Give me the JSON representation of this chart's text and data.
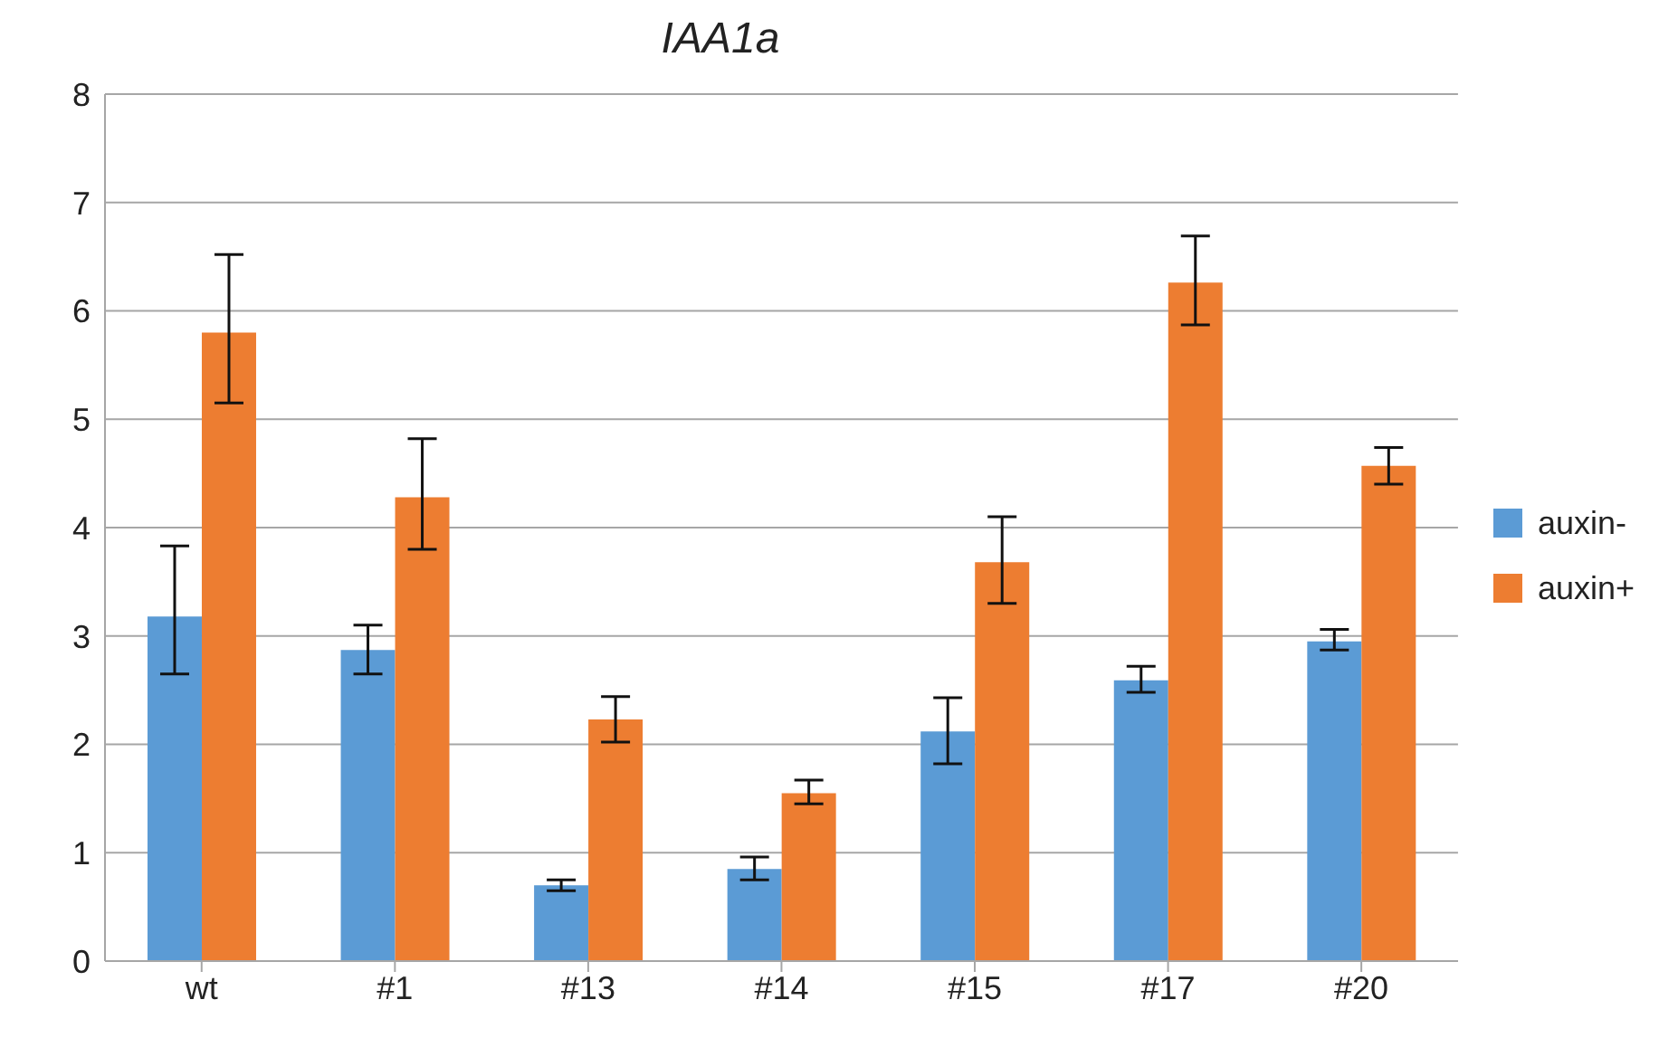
{
  "chart_data": {
    "type": "bar",
    "title": "IAA1a",
    "categories": [
      "wt",
      "#1",
      "#13",
      "#14",
      "#15",
      "#17",
      "#20"
    ],
    "series": [
      {
        "name": "auxin-",
        "color": "#5b9bd5",
        "values": [
          3.18,
          2.87,
          0.7,
          0.85,
          2.12,
          2.59,
          2.95
        ],
        "errors": [
          [
            2.65,
            3.83
          ],
          [
            2.65,
            3.1
          ],
          [
            0.65,
            0.75
          ],
          [
            0.75,
            0.96
          ],
          [
            1.82,
            2.43
          ],
          [
            2.48,
            2.72
          ],
          [
            2.87,
            3.06
          ]
        ]
      },
      {
        "name": "auxin+",
        "color": "#ed7d31",
        "values": [
          5.8,
          4.28,
          2.23,
          1.55,
          3.68,
          6.26,
          4.57
        ],
        "errors": [
          [
            5.15,
            6.52
          ],
          [
            3.8,
            4.82
          ],
          [
            2.02,
            2.44
          ],
          [
            1.45,
            1.67
          ],
          [
            3.3,
            4.1
          ],
          [
            5.87,
            6.69
          ],
          [
            4.4,
            4.74
          ]
        ]
      }
    ],
    "ylim": [
      0,
      8
    ],
    "yticks": [
      0,
      1,
      2,
      3,
      4,
      5,
      6,
      7,
      8
    ],
    "grid": "y",
    "legend": "right"
  }
}
